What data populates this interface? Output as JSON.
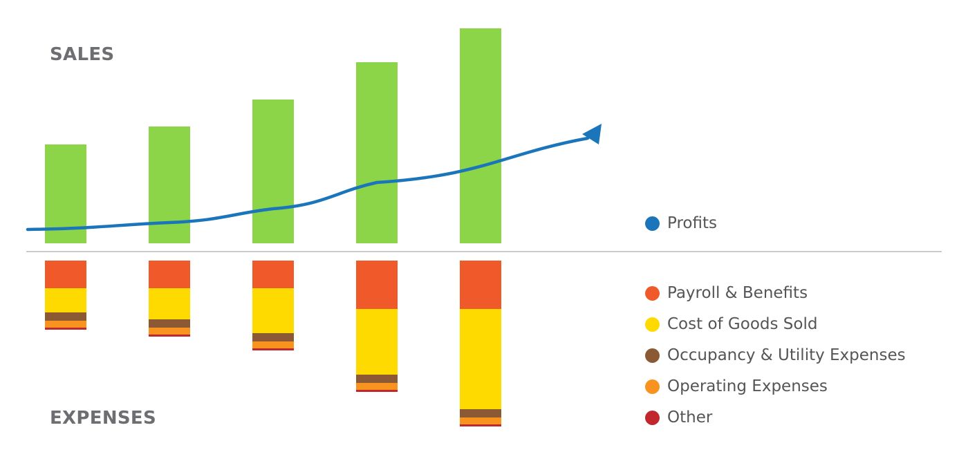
{
  "chart_data": {
    "type": "bar",
    "sections": {
      "top": "SALES",
      "bottom": "EXPENSES"
    },
    "categories": [
      "",
      "",
      "",
      "",
      ""
    ],
    "sales": {
      "color": "#8cd448",
      "values": [
        143,
        169,
        208,
        262,
        311
      ]
    },
    "expenses": {
      "series": [
        {
          "name": "Payroll & Benefits",
          "color": "#f05a2b",
          "values": [
            40,
            40,
            40,
            70,
            70
          ]
        },
        {
          "name": "Cost of Goods Sold",
          "color": "#ffda00",
          "values": [
            35,
            45,
            65,
            95,
            145
          ]
        },
        {
          "name": "Occupancy & Utility Expenses",
          "color": "#8b5a34",
          "values": [
            12,
            12,
            12,
            12,
            12
          ]
        },
        {
          "name": "Operating Expenses",
          "color": "#f7931e",
          "values": [
            10,
            10,
            10,
            10,
            10
          ]
        },
        {
          "name": "Other",
          "color": "#c1272d",
          "values": [
            3,
            3,
            3,
            3,
            3
          ]
        }
      ]
    },
    "profits": {
      "name": "Profits",
      "color": "#1b75bb",
      "values": [
        20,
        30,
        50,
        88,
        152
      ],
      "trend": "increasing",
      "arrow": true
    },
    "baseline_color": "#9a9a9a",
    "grid": false,
    "legend_position": "right"
  }
}
